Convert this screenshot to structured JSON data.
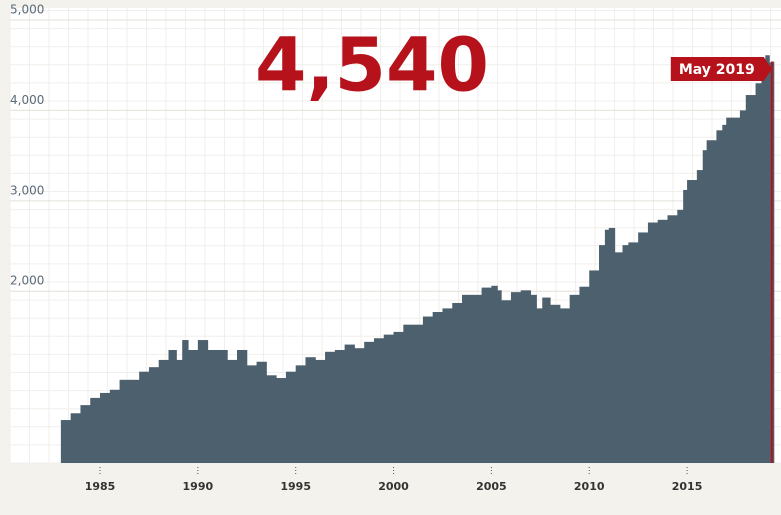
{
  "chart_data": {
    "type": "step-area",
    "headline": "4,540",
    "annotation": "May 2019",
    "color": "#4d606e",
    "accent_color": "#b5121b",
    "grid": true,
    "x": [
      1983.0,
      1983.5,
      1984.0,
      1984.5,
      1985.0,
      1985.5,
      1986.0,
      1986.5,
      1987.0,
      1987.5,
      1988.0,
      1988.5,
      1988.9,
      1989.2,
      1989.5,
      1990.0,
      1990.5,
      1991.0,
      1991.5,
      1992.0,
      1992.5,
      1993.0,
      1993.5,
      1994.0,
      1994.5,
      1995.0,
      1995.5,
      1996.0,
      1996.5,
      1997.0,
      1997.5,
      1998.0,
      1998.5,
      1999.0,
      1999.5,
      2000.0,
      2000.5,
      2001.0,
      2001.5,
      2002.0,
      2002.5,
      2003.0,
      2003.5,
      2004.0,
      2004.5,
      2005.0,
      2005.3,
      2005.5,
      2006.0,
      2006.5,
      2007.0,
      2007.3,
      2007.6,
      2008.0,
      2008.5,
      2009.0,
      2009.5,
      2010.0,
      2010.5,
      2010.8,
      2011.0,
      2011.3,
      2011.7,
      2012.0,
      2012.5,
      2013.0,
      2013.5,
      2014.0,
      2014.5,
      2014.8,
      2015.0,
      2015.5,
      2015.8,
      2016.0,
      2016.5,
      2016.8,
      2017.0,
      2017.3,
      2017.7,
      2018.0,
      2018.5,
      2018.8,
      2019.0,
      2019.2,
      2019.33
    ],
    "values": [
      575,
      650,
      740,
      820,
      875,
      910,
      1020,
      1020,
      1110,
      1160,
      1240,
      1350,
      1240,
      1460,
      1350,
      1460,
      1350,
      1350,
      1240,
      1350,
      1180,
      1220,
      1070,
      1040,
      1110,
      1180,
      1270,
      1240,
      1330,
      1350,
      1410,
      1370,
      1440,
      1480,
      1520,
      1550,
      1630,
      1630,
      1720,
      1770,
      1810,
      1870,
      1960,
      1960,
      2040,
      2060,
      2010,
      1900,
      1990,
      2010,
      1960,
      1810,
      1930,
      1850,
      1810,
      1960,
      2050,
      2230,
      2510,
      2680,
      2700,
      2430,
      2510,
      2540,
      2650,
      2760,
      2790,
      2840,
      2900,
      3120,
      3230,
      3340,
      3560,
      3670,
      3780,
      3840,
      3920,
      3920,
      4000,
      4170,
      4300,
      4450,
      4610,
      4530,
      4540
    ],
    "xlim": [
      1980.4,
      2019.8
    ],
    "ylim": [
      100,
      5000
    ],
    "xticks": [
      1985,
      1990,
      1995,
      2000,
      2005,
      2010,
      2015
    ],
    "yticks": [
      {
        "value": 2000,
        "label": "2,000"
      },
      {
        "value": 3000,
        "label": "3,000"
      },
      {
        "value": 4000,
        "label": "4,000"
      },
      {
        "value": 5000,
        "label": "5,000"
      }
    ]
  }
}
